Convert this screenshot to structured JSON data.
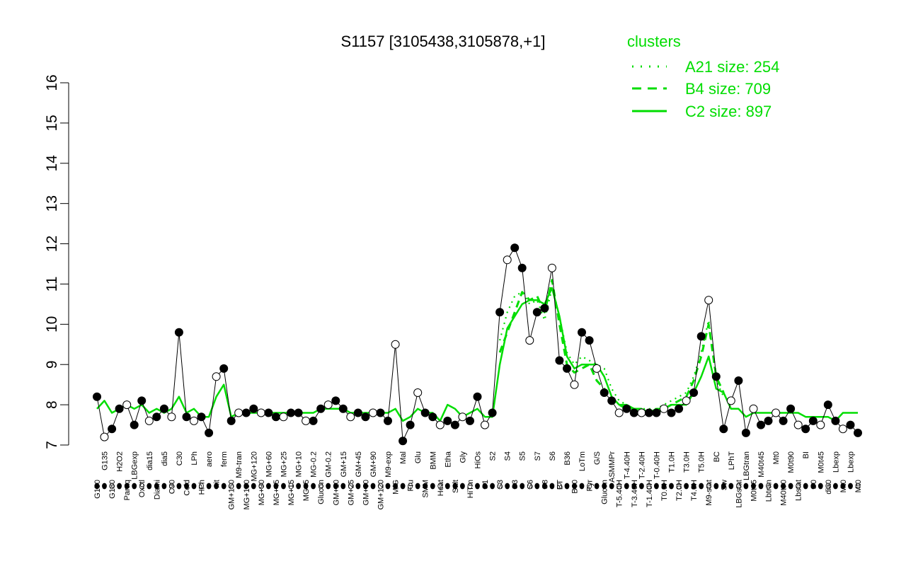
{
  "chart_data": {
    "type": "line",
    "title": "S1157 [3105438,3105878,+1]",
    "xlabel": "",
    "ylabel": "",
    "ylim": [
      7,
      16
    ],
    "yticks": [
      7,
      8,
      9,
      10,
      11,
      12,
      13,
      14,
      15,
      16
    ],
    "grid": false,
    "legend": {
      "title": "clusters",
      "position": "top-right",
      "color": "#00dd00",
      "entries": [
        {
          "label": "A21 size: 254",
          "style": "dotted"
        },
        {
          "label": "B4 size: 709",
          "style": "dashed"
        },
        {
          "label": "C2 size: 897",
          "style": "solid"
        }
      ]
    },
    "x_tick_labels": [
      "G150",
      "G135",
      "G180",
      "H2O2",
      "Paraq",
      "LBGexp",
      "Oxctl",
      "dia15",
      "Diami",
      "dia5",
      "C90",
      "C30",
      "Cold",
      "LPh",
      "HPh",
      "aero",
      "nit",
      "ferm",
      "GM+150",
      "M9-tran",
      "MG+150",
      "MG+120",
      "MG+90",
      "MG+60",
      "MG+45",
      "MG+25",
      "MG+15",
      "MG+10",
      "MG+5",
      "MG-0.2",
      "Glucon",
      "GM-0.2",
      "GM+10",
      "GM+15",
      "GM+25",
      "GM+45",
      "GM+60",
      "GM+90",
      "GM+120",
      "M9-exp",
      "M/G",
      "Mal",
      "Fru",
      "Glu",
      "SMM",
      "BMM",
      "Heat",
      "Etha",
      "Salt",
      "Gly",
      "HiTm",
      "HiOs",
      "S1",
      "S2",
      "S3",
      "S4",
      "S3",
      "S5",
      "S6",
      "S7",
      "S8",
      "S6",
      "BT",
      "B36",
      "B60",
      "LoTm",
      "Pyr",
      "G/S",
      "Glucon",
      "ASMMPr",
      "T-5.40H",
      "T-4.40H",
      "T-3.40H",
      "T-2.40H",
      "T-1.40H",
      "T-0.40H",
      "T0.0H",
      "T1.0H",
      "T2.0H",
      "T3.0H",
      "T4.0H",
      "T5.0H",
      "M9-stat",
      "BC",
      "Sw",
      "LPhT",
      "LBGstat",
      "LBGtran",
      "M0t45",
      "M40t45",
      "Lbtran",
      "Mt0",
      "M40t90",
      "M0t90",
      "Lbstat",
      "BI",
      "S0",
      "M0t45",
      "dia0",
      "Lbexp",
      "Mt0",
      "Lbexp",
      "Mt0"
    ],
    "series": [
      {
        "style": "solid",
        "values": [
          7.9,
          8.1,
          7.8,
          7.9,
          8.0,
          7.9,
          8.0,
          7.8,
          7.9,
          7.8,
          7.9,
          8.2,
          7.8,
          7.9,
          7.7,
          7.7,
          8.2,
          8.5,
          7.7,
          7.8,
          7.8,
          7.8,
          7.8,
          7.8,
          7.8,
          7.8,
          7.8,
          7.8,
          7.8,
          7.8,
          7.9,
          7.9,
          7.9,
          7.9,
          7.8,
          7.8,
          7.8,
          7.8,
          7.8,
          7.8,
          7.9,
          7.6,
          7.7,
          7.9,
          7.8,
          7.8,
          7.6,
          8.0,
          7.9,
          7.7,
          7.8,
          7.9,
          7.7,
          7.7,
          9.0,
          9.9,
          10.2,
          10.5,
          10.6,
          10.6,
          10.5,
          10.9,
          10.2,
          9.2,
          8.9,
          9.0,
          9.0,
          9.0,
          8.7,
          8.2,
          8.0,
          8.0,
          7.9,
          7.9,
          7.8,
          7.9,
          7.9,
          8.0,
          8.0,
          8.0,
          8.3,
          8.7,
          9.2,
          8.4,
          8.3,
          7.9,
          7.9,
          7.7,
          7.8,
          7.8,
          7.8,
          7.8,
          7.8,
          7.8,
          7.8,
          7.7,
          7.7,
          7.7,
          7.7,
          7.6,
          7.8,
          7.8,
          7.8
        ]
      },
      {
        "style": "dashed",
        "values": [
          null,
          null,
          null,
          null,
          null,
          null,
          null,
          null,
          null,
          null,
          null,
          null,
          null,
          null,
          null,
          null,
          null,
          null,
          null,
          null,
          null,
          null,
          null,
          null,
          null,
          null,
          null,
          null,
          null,
          null,
          null,
          null,
          null,
          null,
          null,
          null,
          null,
          null,
          null,
          null,
          null,
          null,
          null,
          null,
          null,
          null,
          null,
          null,
          null,
          null,
          null,
          null,
          null,
          null,
          9.3,
          9.8,
          10.3,
          10.8,
          10.6,
          10.7,
          10.3,
          11.1,
          10.0,
          9.0,
          8.8,
          8.9,
          9.0,
          8.6,
          8.4,
          8.1,
          8.0,
          7.9,
          7.9,
          7.8,
          7.8,
          7.8,
          7.9,
          8.0,
          8.1,
          8.2,
          8.6,
          9.2,
          10.0,
          8.7,
          8.3,
          null,
          null,
          null,
          null,
          null,
          null,
          null,
          null,
          null,
          null,
          null,
          null,
          null,
          null,
          null,
          null,
          null,
          null
        ]
      },
      {
        "style": "dotted",
        "values": [
          null,
          null,
          null,
          null,
          null,
          null,
          null,
          null,
          null,
          null,
          null,
          null,
          null,
          null,
          null,
          null,
          null,
          null,
          null,
          null,
          null,
          null,
          null,
          null,
          null,
          null,
          null,
          null,
          null,
          null,
          null,
          null,
          null,
          null,
          null,
          null,
          null,
          null,
          null,
          null,
          null,
          null,
          null,
          null,
          null,
          null,
          null,
          null,
          null,
          null,
          null,
          null,
          null,
          null,
          9.6,
          10.3,
          10.7,
          10.8,
          10.5,
          10.6,
          10.1,
          10.9,
          10.2,
          9.3,
          9.0,
          9.2,
          9.1,
          9.0,
          8.9,
          8.4,
          8.1,
          8.0,
          7.9,
          7.9,
          7.9,
          7.9,
          8.0,
          8.1,
          8.2,
          8.3,
          8.7,
          9.3,
          10.1,
          8.6,
          8.2,
          null,
          null,
          null,
          null,
          null,
          null,
          null,
          null,
          null,
          null,
          null,
          null,
          null,
          null,
          null,
          null,
          null,
          null
        ]
      },
      {
        "style": "points",
        "values": [
          8.2,
          7.2,
          7.4,
          7.9,
          8.0,
          7.5,
          8.1,
          7.6,
          7.7,
          7.9,
          7.7,
          9.8,
          7.7,
          7.6,
          7.7,
          7.3,
          8.7,
          8.9,
          7.6,
          7.8,
          7.8,
          7.9,
          7.8,
          7.8,
          7.7,
          7.7,
          7.8,
          7.8,
          7.6,
          7.6,
          7.9,
          8.0,
          8.1,
          7.9,
          7.7,
          7.8,
          7.7,
          7.8,
          7.8,
          7.6,
          9.5,
          7.1,
          7.5,
          8.3,
          7.8,
          7.7,
          7.5,
          7.6,
          7.5,
          7.7,
          7.6,
          8.2,
          7.5,
          7.8,
          10.3,
          11.6,
          11.9,
          11.4,
          9.6,
          10.3,
          10.4,
          11.4,
          9.1,
          8.9,
          8.5,
          9.8,
          9.6,
          8.9,
          8.3,
          8.1,
          7.8,
          7.9,
          7.8,
          7.8,
          7.8,
          7.8,
          7.9,
          7.8,
          7.9,
          8.1,
          8.3,
          9.7,
          10.6,
          8.7,
          7.4,
          8.1,
          8.6,
          7.3,
          7.9,
          7.5,
          7.6,
          7.8,
          7.6,
          7.9,
          7.5,
          7.4,
          7.6,
          7.5,
          8.0,
          7.6,
          7.4,
          7.5,
          7.3
        ]
      }
    ]
  }
}
